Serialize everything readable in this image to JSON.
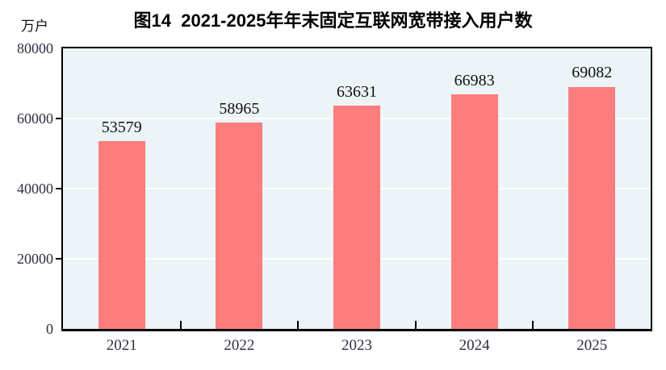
{
  "figure": {
    "title": "图14  2021-2025年年末固定互联网宽带接入用户数",
    "unit_label": "万户"
  },
  "chart_data": {
    "type": "bar",
    "title": "图14  2021-2025年年末固定互联网宽带接入用户数",
    "categories": [
      "2021",
      "2022",
      "2023",
      "2024",
      "2025"
    ],
    "values": [
      53579,
      58965,
      63631,
      66983,
      69082
    ],
    "value_labels": [
      "53579",
      "58965",
      "63631",
      "66983",
      "69082"
    ],
    "xlabel": "",
    "ylabel": "万户",
    "ylim": [
      0,
      80000
    ],
    "yticks": [
      0,
      20000,
      40000,
      60000,
      80000
    ],
    "ytick_labels": [
      "0",
      "20000",
      "40000",
      "60000",
      "80000"
    ],
    "grid": "horizontal",
    "gridline_values": [
      20000,
      40000,
      60000
    ],
    "legend": "none",
    "colors": {
      "bar": "#FC7D7D",
      "plot_background": "#EDF4F8",
      "gridline": "#FFFFFF",
      "axis": "#000000",
      "tick_label": "#2F2F3F",
      "value_label": "#111111",
      "title": "#000000",
      "page_background": "#FFFFFF"
    }
  }
}
